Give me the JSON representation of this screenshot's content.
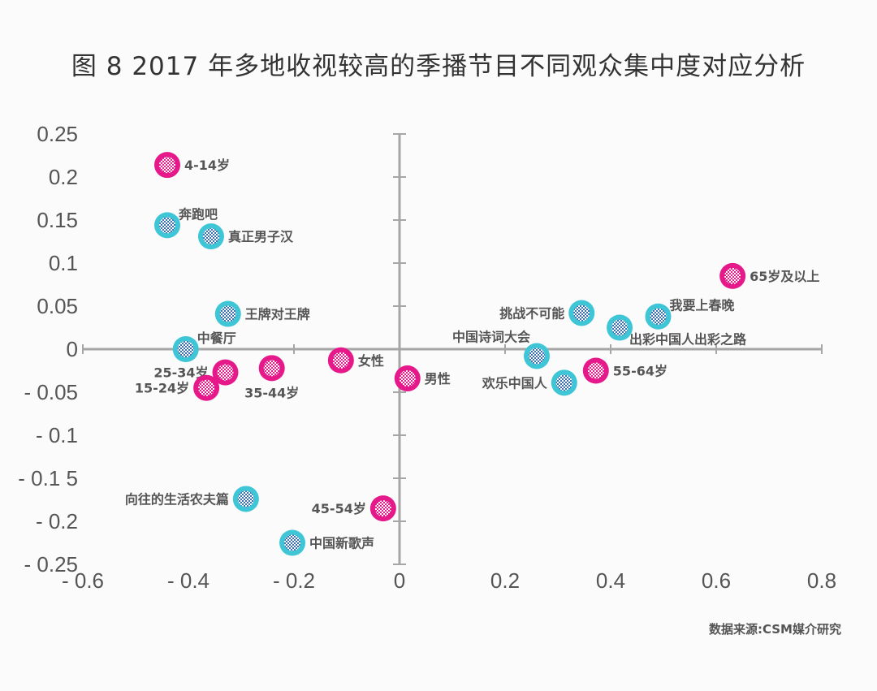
{
  "title": "图 8  2017 年多地收视较高的季播节目不同观众集中度对应分析",
  "source": "数据来源:CSM媒介研究",
  "colors": {
    "audience": "#e6198b",
    "program": "#3ec6d6",
    "axis": "#a6a6a6",
    "text": "#555555"
  },
  "chart_data": {
    "type": "scatter",
    "title": "图 8  2017 年多地收视较高的季播节目不同观众集中度对应分析",
    "xlabel": "",
    "ylabel": "",
    "xlim": [
      -0.6,
      0.8
    ],
    "ylim": [
      -0.25,
      0.25
    ],
    "x_ticks": [
      -0.6,
      -0.4,
      -0.2,
      0,
      0.2,
      0.4,
      0.6,
      0.8
    ],
    "x_tick_labels": [
      "- 0.6",
      "- 0.4",
      "- 0.2",
      "0",
      "0.2",
      "0.4",
      "0.6",
      "0.8"
    ],
    "y_ticks": [
      0.25,
      0.2,
      0.15,
      0.1,
      0.05,
      0,
      -0.05,
      -0.1,
      -0.15,
      -0.2,
      -0.25
    ],
    "y_tick_labels": [
      "0.25",
      "0.2",
      "0.15",
      "0.1",
      "0.05",
      "0",
      "- 0.05",
      "- 0.1",
      "- 0.1 5",
      "- 0.2",
      "- 0.25"
    ],
    "grid": false,
    "series": [
      {
        "name": "audience",
        "color": "#e6198b",
        "points": [
          {
            "label": "4-14岁",
            "x": -0.44,
            "y": 0.214,
            "pos": "right"
          },
          {
            "label": "25-34岁",
            "x": -0.33,
            "y": -0.027,
            "pos": "left"
          },
          {
            "label": "15-24岁",
            "x": -0.366,
            "y": -0.045,
            "pos": "left"
          },
          {
            "label": "35-44岁",
            "x": -0.242,
            "y": -0.022,
            "pos": "below"
          },
          {
            "label": "女性",
            "x": -0.111,
            "y": -0.013,
            "pos": "right"
          },
          {
            "label": "男性",
            "x": 0.015,
            "y": -0.034,
            "pos": "right"
          },
          {
            "label": "55-64岁",
            "x": 0.372,
            "y": -0.025,
            "pos": "right"
          },
          {
            "label": "65岁及以上",
            "x": 0.631,
            "y": 0.085,
            "pos": "right"
          },
          {
            "label": "45-54岁",
            "x": -0.031,
            "y": -0.185,
            "pos": "left"
          }
        ]
      },
      {
        "name": "program",
        "color": "#3ec6d6",
        "points": [
          {
            "label": "奔跑吧",
            "x": -0.44,
            "y": 0.144,
            "pos": "upright"
          },
          {
            "label": "真正男子汉",
            "x": -0.357,
            "y": 0.131,
            "pos": "right"
          },
          {
            "label": "王牌对王牌",
            "x": -0.325,
            "y": 0.041,
            "pos": "right"
          },
          {
            "label": "中餐厅",
            "x": -0.405,
            "y": 0.0,
            "pos": "upright"
          },
          {
            "label": "中国诗词大会",
            "x": 0.26,
            "y": -0.008,
            "pos": "upleft"
          },
          {
            "label": "挑战不可能",
            "x": 0.345,
            "y": 0.042,
            "pos": "left"
          },
          {
            "label": "出彩中国人出彩之路",
            "x": 0.417,
            "y": 0.025,
            "pos": "downright"
          },
          {
            "label": "我要上春晚",
            "x": 0.49,
            "y": 0.038,
            "pos": "upright"
          },
          {
            "label": "欢乐中国人",
            "x": 0.312,
            "y": -0.039,
            "pos": "left"
          },
          {
            "label": "向往的生活农夫篇",
            "x": -0.291,
            "y": -0.174,
            "pos": "left"
          },
          {
            "label": "中国新歌声",
            "x": -0.203,
            "y": -0.225,
            "pos": "right"
          }
        ]
      }
    ]
  }
}
